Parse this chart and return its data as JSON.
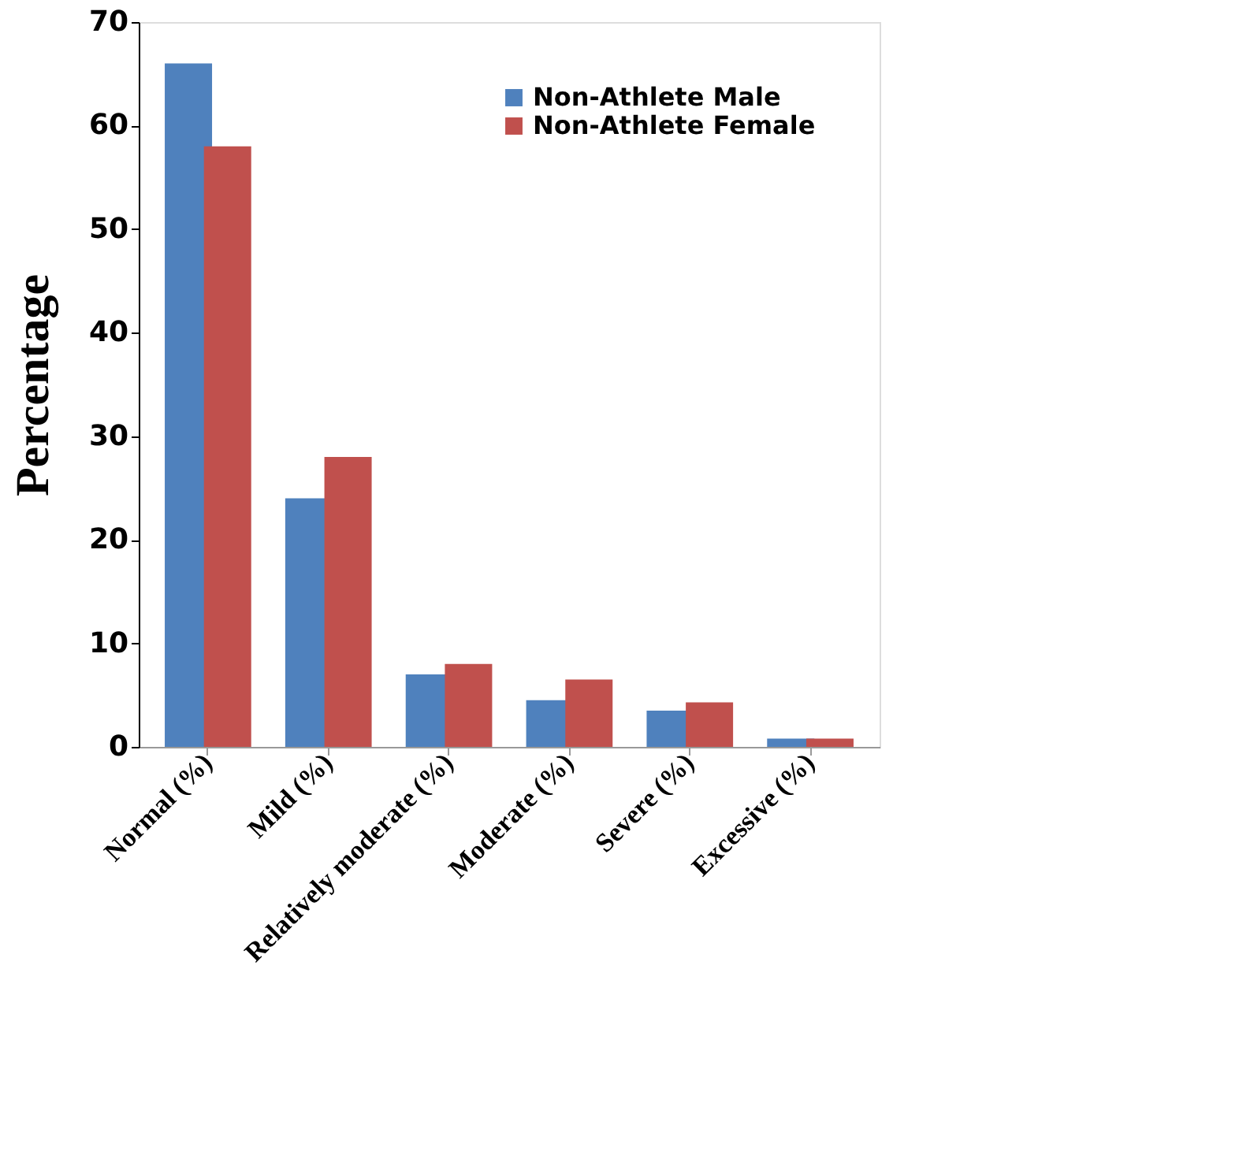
{
  "chart_data": {
    "type": "bar",
    "ylabel": "Percentage",
    "categories": [
      "Normal (%)",
      "Mild (%)",
      "Relatively moderate (%)",
      "Moderate (%)",
      "Severe (%)",
      "Excessive (%)"
    ],
    "series": [
      {
        "name": "Non-Athlete Male",
        "color": "#4f81bd",
        "values": [
          66,
          24,
          7,
          4.5,
          3.5,
          0.8
        ]
      },
      {
        "name": "Non-Athlete Female",
        "color": "#c0504d",
        "values": [
          58,
          28,
          8,
          6.5,
          4.3,
          0.8
        ]
      }
    ],
    "ylim": [
      0,
      70
    ],
    "yticks": [
      0,
      10,
      20,
      30,
      40,
      50,
      60,
      70
    ],
    "grid": false,
    "legend": "top right"
  }
}
